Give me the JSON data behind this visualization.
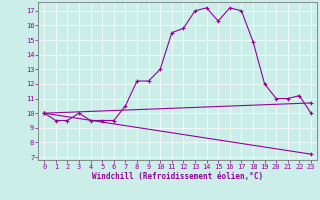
{
  "xlabel": "Windchill (Refroidissement éolien,°C)",
  "bg_color": "#cceee8",
  "line_color": "#990099",
  "xlim": [
    -0.5,
    23.5
  ],
  "ylim": [
    6.8,
    17.6
  ],
  "xticks": [
    0,
    1,
    2,
    3,
    4,
    5,
    6,
    7,
    8,
    9,
    10,
    11,
    12,
    13,
    14,
    15,
    16,
    17,
    18,
    19,
    20,
    21,
    22,
    23
  ],
  "yticks": [
    7,
    8,
    9,
    10,
    11,
    12,
    13,
    14,
    15,
    16,
    17
  ],
  "line1_x": [
    0,
    1,
    2,
    3,
    4,
    5,
    6,
    7,
    8,
    9,
    10,
    11,
    12,
    13,
    14,
    15,
    16,
    17,
    18,
    19,
    20,
    21,
    22,
    23
  ],
  "line1_y": [
    10.0,
    9.5,
    9.5,
    10.0,
    9.5,
    9.5,
    9.5,
    10.5,
    12.2,
    12.2,
    13.0,
    15.5,
    15.8,
    17.0,
    17.2,
    16.3,
    17.2,
    17.0,
    14.9,
    12.0,
    11.0,
    11.0,
    11.2,
    10.0
  ],
  "line2_x": [
    0,
    23
  ],
  "line2_y": [
    10.0,
    7.2
  ],
  "line3_x": [
    0,
    23
  ],
  "line3_y": [
    10.0,
    10.7
  ],
  "grid_color": "#ffffff",
  "spine_color": "#666666",
  "tick_label_fontsize": 5.0,
  "xlabel_fontsize": 5.5,
  "marker_size": 3.0,
  "linewidth": 0.8
}
